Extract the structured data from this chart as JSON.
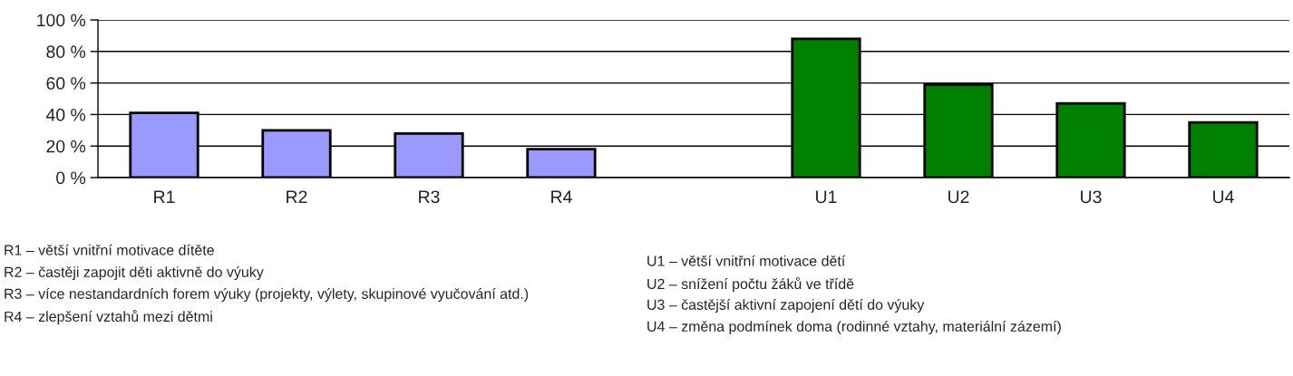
{
  "chart_data": {
    "type": "bar",
    "categories": [
      "R1",
      "R2",
      "R3",
      "R4",
      null,
      "U1",
      "U2",
      "U3",
      "U4"
    ],
    "series": [
      {
        "color": "#9999ff",
        "values": [
          41,
          30,
          28,
          18,
          null,
          null,
          null,
          null,
          null
        ]
      },
      {
        "color": "#008000",
        "values": [
          null,
          null,
          null,
          null,
          null,
          88,
          59,
          47,
          35
        ]
      }
    ],
    "ylim": [
      0,
      100
    ],
    "yticks": [
      {
        "value": 0,
        "label": "0 %"
      },
      {
        "value": 20,
        "label": "20 %"
      },
      {
        "value": 40,
        "label": "40 %"
      },
      {
        "value": 60,
        "label": "60 %"
      },
      {
        "value": 80,
        "label": "80 %"
      },
      {
        "value": 100,
        "label": "100 %"
      }
    ],
    "grid": "y",
    "annotations": [
      "R1 – větší vnitřní motivace dítěte",
      "R2 – častěji zapojit děti aktivně do výuky",
      "R3 – více nestandardních forem výuky (projekty, výlety, skupinové vyučování atd.)",
      "R4 – zlepšení vztahů mezi dětmi",
      "U1 – větší vnitřní motivace dětí",
      "U2 – snížení počtu žáků ve třídě",
      "U3 – častější aktivní zapojení dětí do výuky",
      "U4 – změna podmínek doma (rodinné vztahy, materiální zázemí)"
    ]
  }
}
